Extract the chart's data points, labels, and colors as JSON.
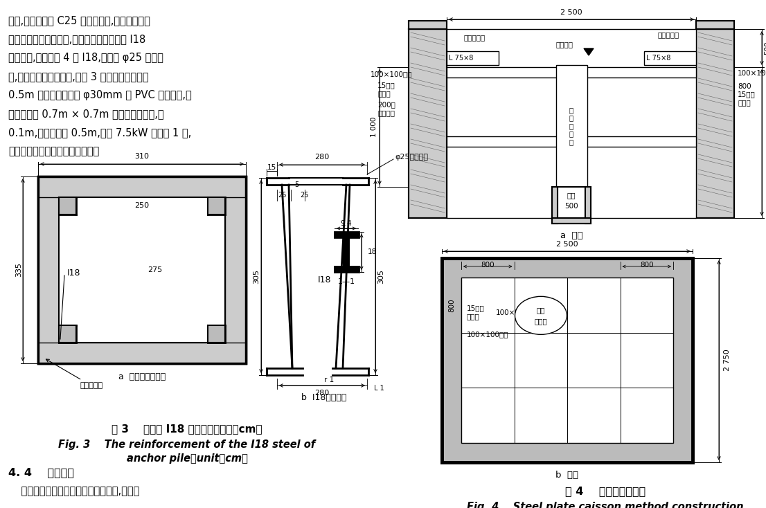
{
  "bg_color": "#ffffff",
  "left_text_lines": [
    "间距,梅花形布置 C25 混凝土垫块,便于缩短安装",
    "时间。钢筋网片安装后,沿开挖高度中部布置 I18",
    "进行加固,加固采用 4 根 I18,首尾用 φ25 钢筋连",
    "接,孔内拼装焊接成整体,如图 3 所示。护壁上按照",
    "0.5m 间距梅花形预留 φ30mm 的 PVC 管泄水孔,在",
    "开挖孔底设 0.7m × 0.7m 临时集水坑一处,深",
    "0.1m,超前开挖面 0.5m,配备 7.5kW 潜水泵 1 台,",
    "在施工过程中及时排除孔内渗水。"
  ],
  "fig3_title_cn": "图 3    锚固桩 I18 加固大样（单位：cm）",
  "fig3_title_en1": "Fig. 3    The reinforcement of the I18 steel of",
  "fig3_title_en2": "anchor pile（unit；cm）",
  "fig4_title_cn": "图 4    钢板沉井法施工",
  "fig4_title_en": "Fig. 4    Steel plate caisson method construction",
  "sec44_title": "4. 4    工效分析",
  "sec44_text": "    超前支护施工方法和井点降水法施工,现场各",
  "sub_a_label": "a  锚固桩加固大样",
  "sub_b_label": "b  I18型钢大样",
  "sub_a2_label": "a  立面",
  "sub_b2_label": "b  平面"
}
